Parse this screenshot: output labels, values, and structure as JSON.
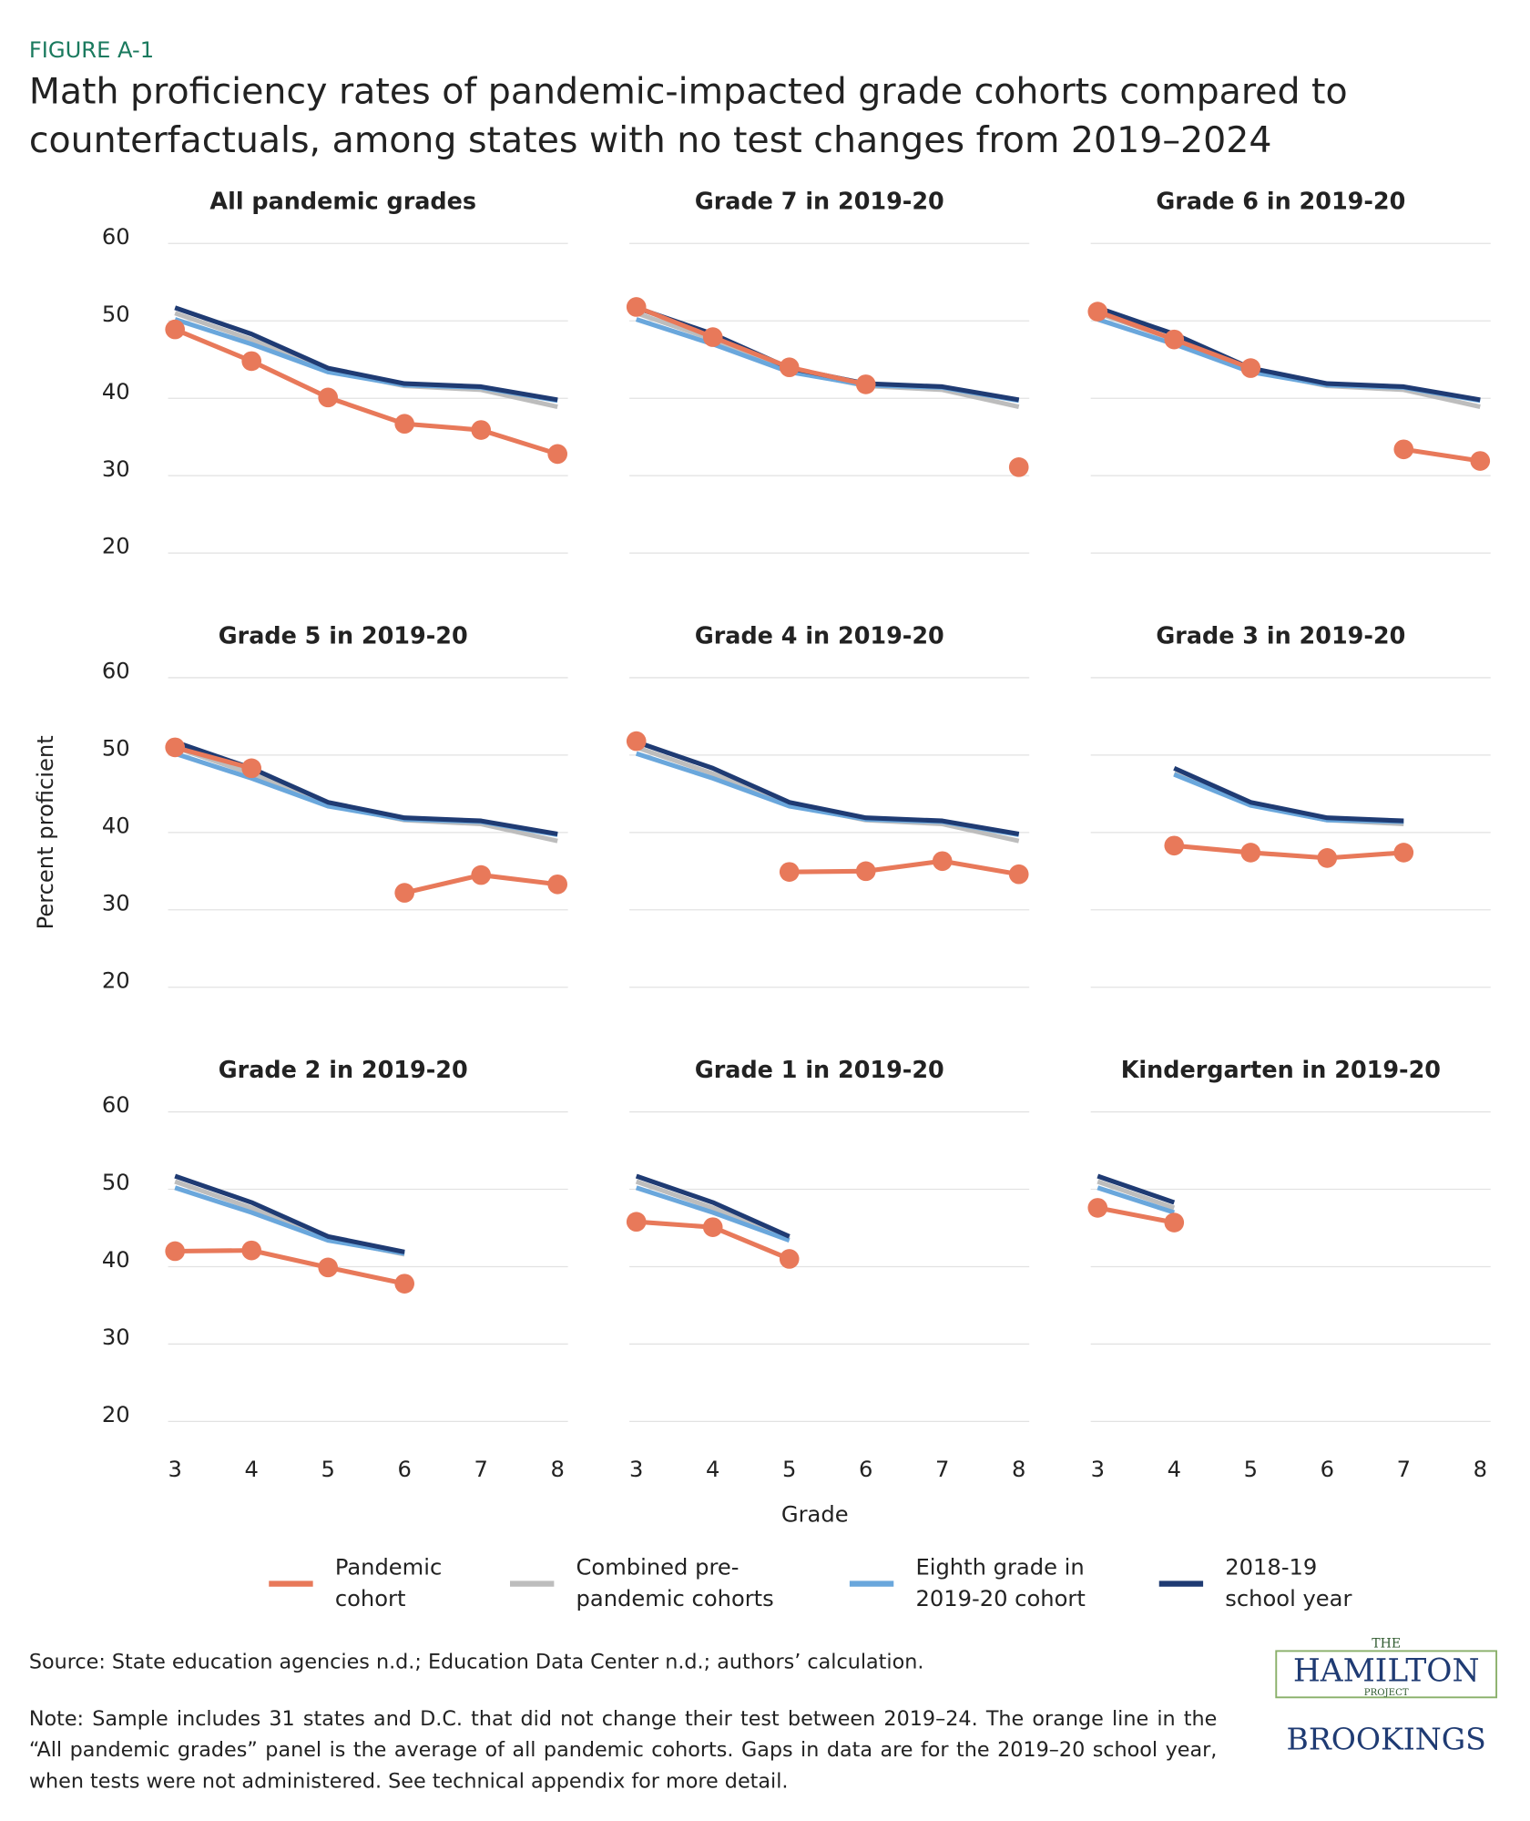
{
  "figure_label": "FIGURE A-1",
  "title": "Math proficiency rates of pandemic-impacted grade cohorts compared to counterfactuals, among states with no test changes from 2019–2024",
  "source": "Source: State education agencies n.d.; Education Data Center n.d.; authors’ calculation.",
  "note": "Note: Sample includes 31 states and D.C. that did not change their test between 2019–24. The orange line in the “All pandemic grades” panel is the average of all pandemic cohorts. Gaps in data are for the 2019–20 school year, when tests were not administered. See technical appendix for more detail.",
  "logos": {
    "hamilton_top": "THE",
    "hamilton": "HAMILTON",
    "hamilton_bottom": "PROJECT",
    "brookings": "BROOKINGS"
  },
  "chart_data": {
    "type": "line",
    "y_label": "Percent proficient",
    "x_label": "Grade",
    "categories": [
      3,
      4,
      5,
      6,
      7,
      8
    ],
    "ylim": [
      20,
      60
    ],
    "yticks": [
      20,
      30,
      40,
      50,
      60
    ],
    "grid": true,
    "legend": [
      {
        "name": "Pandemic cohort",
        "color": "#e8795a",
        "markers": true
      },
      {
        "name": "Combined pre-pandemic cohorts",
        "color": "#bdbdbd"
      },
      {
        "name": "Eighth grade in 2019-20 cohort",
        "color": "#6aa7dc"
      },
      {
        "name": "2018-19 school year",
        "color": "#1f3b73"
      }
    ],
    "panels": [
      {
        "title": "All pandemic grades",
        "series": [
          {
            "values": [
              48.9,
              44.8,
              40.1,
              36.7,
              35.9,
              32.8
            ]
          },
          {
            "values": [
              51.0,
              47.6,
              43.6,
              41.6,
              41.1,
              38.9
            ]
          },
          {
            "values": [
              50.2,
              47.0,
              43.4,
              41.7,
              41.4,
              39.7
            ]
          },
          {
            "values": [
              51.7,
              48.3,
              43.9,
              41.9,
              41.5,
              39.8
            ]
          }
        ]
      },
      {
        "title": "Grade 7 in 2019-20",
        "series": [
          {
            "values": [
              51.8,
              47.9,
              44.0,
              41.8,
              null,
              31.1
            ]
          },
          {
            "values": [
              51.0,
              47.6,
              43.6,
              41.6,
              41.1,
              38.9
            ]
          },
          {
            "values": [
              50.2,
              47.0,
              43.4,
              41.7,
              41.4,
              39.7
            ]
          },
          {
            "values": [
              51.7,
              48.3,
              43.9,
              41.9,
              41.5,
              39.8
            ]
          }
        ]
      },
      {
        "title": "Grade 6 in 2019-20",
        "series": [
          {
            "values": [
              51.2,
              47.6,
              43.9,
              null,
              33.4,
              31.9
            ]
          },
          {
            "values": [
              51.0,
              47.6,
              43.6,
              41.6,
              41.1,
              38.9
            ]
          },
          {
            "values": [
              50.2,
              47.0,
              43.4,
              41.7,
              41.4,
              39.7
            ]
          },
          {
            "values": [
              51.7,
              48.3,
              43.9,
              41.9,
              41.5,
              39.8
            ]
          }
        ]
      },
      {
        "title": "Grade 5 in 2019-20",
        "series": [
          {
            "values": [
              51.0,
              48.3,
              null,
              32.2,
              34.5,
              33.3
            ]
          },
          {
            "values": [
              51.0,
              47.6,
              43.6,
              41.6,
              41.1,
              38.9
            ]
          },
          {
            "values": [
              50.2,
              47.0,
              43.4,
              41.7,
              41.4,
              39.7
            ]
          },
          {
            "values": [
              51.7,
              48.3,
              43.9,
              41.9,
              41.5,
              39.8
            ]
          }
        ]
      },
      {
        "title": "Grade 4 in 2019-20",
        "series": [
          {
            "values": [
              51.8,
              null,
              34.9,
              35.0,
              36.3,
              34.6
            ]
          },
          {
            "values": [
              51.0,
              47.6,
              43.6,
              41.6,
              41.1,
              38.9
            ]
          },
          {
            "values": [
              50.2,
              47.0,
              43.4,
              41.7,
              41.4,
              39.7
            ]
          },
          {
            "values": [
              51.7,
              48.3,
              43.9,
              41.9,
              41.5,
              39.8
            ]
          }
        ]
      },
      {
        "title": "Grade 3 in 2019-20",
        "series": [
          {
            "values": [
              null,
              38.3,
              37.4,
              36.7,
              37.4,
              null
            ]
          },
          {
            "values": [
              null,
              47.6,
              43.6,
              41.6,
              41.1,
              null
            ]
          },
          {
            "values": [
              null,
              47.5,
              43.5,
              41.6,
              41.4,
              null
            ]
          },
          {
            "values": [
              null,
              48.3,
              43.9,
              41.9,
              41.5,
              null
            ]
          }
        ]
      },
      {
        "title": "Grade 2 in 2019-20",
        "series": [
          {
            "values": [
              42.0,
              42.1,
              39.9,
              37.8,
              null,
              null
            ]
          },
          {
            "values": [
              51.0,
              47.6,
              43.6,
              41.6,
              null,
              null
            ]
          },
          {
            "values": [
              50.2,
              47.0,
              43.4,
              41.7,
              null,
              null
            ]
          },
          {
            "values": [
              51.7,
              48.3,
              43.9,
              41.9,
              null,
              null
            ]
          }
        ]
      },
      {
        "title": "Grade 1 in 2019-20",
        "series": [
          {
            "values": [
              45.8,
              45.1,
              41.0,
              null,
              null,
              null
            ]
          },
          {
            "values": [
              51.0,
              47.6,
              43.6,
              null,
              null,
              null
            ]
          },
          {
            "values": [
              50.2,
              47.0,
              43.4,
              null,
              null,
              null
            ]
          },
          {
            "values": [
              51.7,
              48.3,
              43.9,
              null,
              null,
              null
            ]
          }
        ]
      },
      {
        "title": "Kindergarten in 2019-20",
        "series": [
          {
            "values": [
              47.6,
              45.7,
              null,
              null,
              null,
              null
            ]
          },
          {
            "values": [
              51.0,
              47.6,
              null,
              null,
              null,
              null
            ]
          },
          {
            "values": [
              50.2,
              47.0,
              null,
              null,
              null,
              null
            ]
          },
          {
            "values": [
              51.7,
              48.3,
              null,
              null,
              null,
              null
            ]
          }
        ]
      }
    ]
  }
}
